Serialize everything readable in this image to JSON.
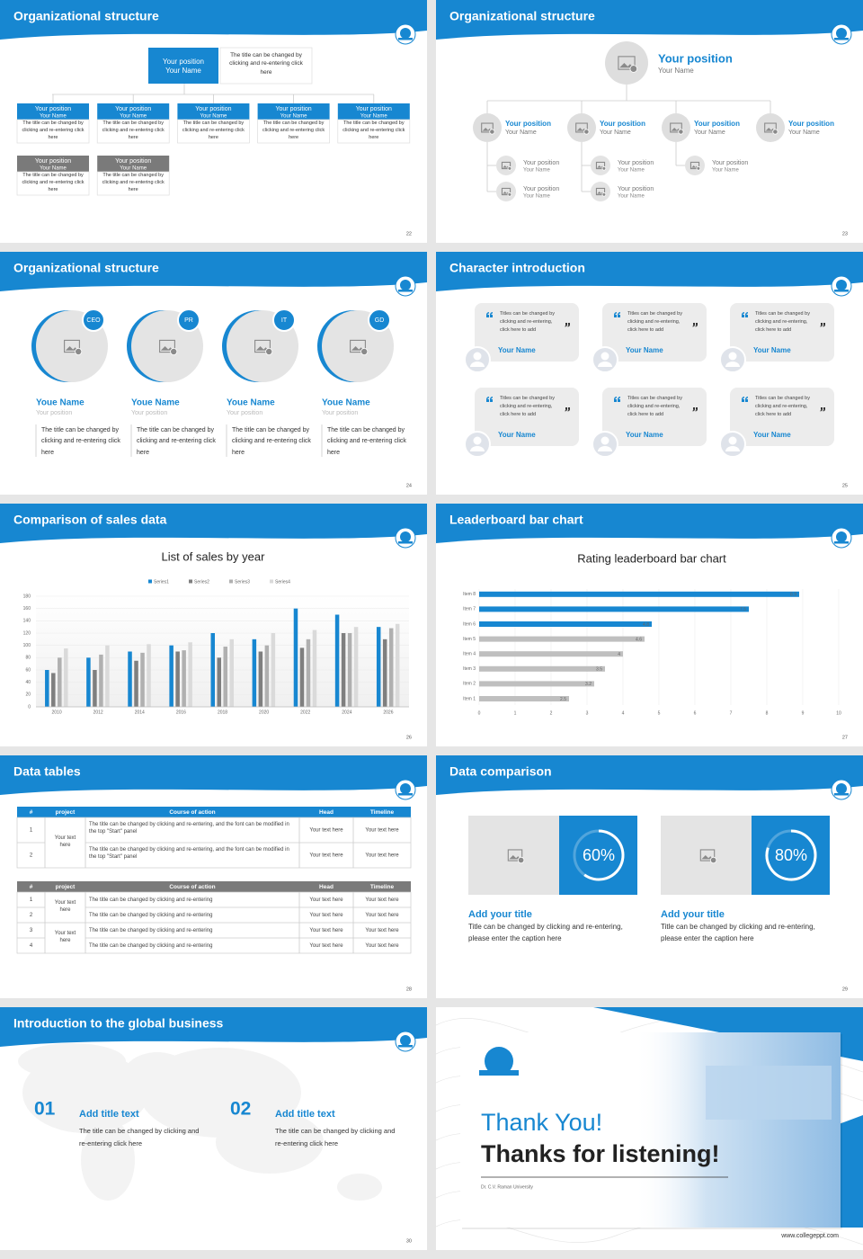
{
  "slides": [
    {
      "title": "Organizational structure",
      "page_number": 22,
      "top": {
        "position": "Your position",
        "name": "Your Name",
        "note": "The title can be changed by clicking and re-entering click here"
      },
      "row1": [
        {
          "position": "Your position",
          "name": "Your Name",
          "note": "The title can be changed by clicking and re-entering click here"
        },
        {
          "position": "Your position",
          "name": "Your Name",
          "note": "The title can be changed by clicking and re-entering click here"
        },
        {
          "position": "Your position",
          "name": "Your Name",
          "note": "The title can be changed by clicking and re-entering click here"
        },
        {
          "position": "Your position",
          "name": "Your Name",
          "note": "The title can be changed by clicking and re-entering click here"
        },
        {
          "position": "Your position",
          "name": "Your Name",
          "note": "The title can be changed by clicking and re-entering click here"
        }
      ],
      "row2": [
        {
          "position": "Your position",
          "name": "Your Name",
          "note": "The title can be changed by clicking and re-entering click here"
        },
        {
          "position": "Your position",
          "name": "Your Name",
          "note": "The title can be changed by clicking and re-entering click here"
        }
      ]
    },
    {
      "title": "Organizational structure",
      "page_number": 23,
      "top": {
        "position": "Your position",
        "name": "Your Name"
      },
      "level2": [
        {
          "position": "Your position",
          "name": "Your Name"
        },
        {
          "position": "Your position",
          "name": "Your Name"
        },
        {
          "position": "Your position",
          "name": "Your Name"
        },
        {
          "position": "Your position",
          "name": "Your Name"
        }
      ],
      "level3": [
        [
          {
            "position": "Your position",
            "name": "Your Name"
          },
          {
            "position": "Your position",
            "name": "Your Name"
          }
        ],
        [
          {
            "position": "Your position",
            "name": "Your Name"
          },
          {
            "position": "Your position",
            "name": "Your Name"
          }
        ],
        [
          {
            "position": "Your position",
            "name": "Your Name"
          }
        ]
      ]
    },
    {
      "title": "Organizational structure",
      "page_number": 24,
      "people": [
        {
          "role": "CEO",
          "name": "Youe Name",
          "position": "Your position",
          "note": "The title can be changed by clicking and re-entering click here"
        },
        {
          "role": "PR",
          "name": "Youe Name",
          "position": "Your position",
          "note": "The title can be changed by clicking and re-entering click here"
        },
        {
          "role": "IT",
          "name": "Youe Name",
          "position": "Your position",
          "note": "The title can be changed by clicking and re-entering click here"
        },
        {
          "role": "GD",
          "name": "Youe Name",
          "position": "Your position",
          "note": "The title can be changed by clicking and re-entering click here"
        }
      ]
    },
    {
      "title": "Character introduction",
      "page_number": 25,
      "cards": [
        {
          "quote": "Titles can be changed by clicking and re-entering, click here to add",
          "name": "Your Name"
        },
        {
          "quote": "Titles can be changed by clicking and re-entering, click here to add",
          "name": "Your Name"
        },
        {
          "quote": "Titles can be changed by clicking and re-entering, click here to add",
          "name": "Your Name"
        },
        {
          "quote": "Titles can be changed by clicking and re-entering, click here to add",
          "name": "Your Name"
        },
        {
          "quote": "Titles can be changed by clicking and re-entering, click here to add",
          "name": "Your Name"
        },
        {
          "quote": "Titles can be changed by clicking and re-entering, click here to add",
          "name": "Your Name"
        }
      ]
    },
    {
      "title": "Comparison of sales data",
      "page_number": 26,
      "chart": {
        "type": "bar",
        "title": "List of sales by year",
        "categories": [
          "2010",
          "2012",
          "2014",
          "2016",
          "2018",
          "2020",
          "2022",
          "2024",
          "2026"
        ],
        "series": [
          {
            "name": "Series1",
            "color": "#1787d1",
            "values": [
              60,
              80,
              90,
              100,
              120,
              110,
              160,
              150,
              130
            ]
          },
          {
            "name": "Series2",
            "color": "#7f7f7f",
            "values": [
              55,
              60,
              75,
              90,
              80,
              90,
              96,
              120,
              110
            ]
          },
          {
            "name": "Series3",
            "color": "#b0b0b0",
            "values": [
              80,
              85,
              88,
              92,
              98,
              100,
              110,
              120,
              128
            ]
          },
          {
            "name": "Series4",
            "color": "#dadada",
            "values": [
              95,
              100,
              102,
              105,
              110,
              120,
              125,
              130,
              135
            ]
          }
        ],
        "ylim": [
          0,
          180
        ],
        "yticks": [
          0,
          20,
          40,
          60,
          80,
          100,
          120,
          140,
          160,
          180
        ],
        "grid": true
      }
    },
    {
      "title": "Leaderboard bar chart",
      "page_number": 27,
      "chart": {
        "type": "hbar",
        "title": "Rating leaderboard bar chart",
        "categories": [
          "Item 1",
          "Item 2",
          "Item 3",
          "Item 4",
          "Item 5",
          "Item 6",
          "Item 7",
          "Item 8"
        ],
        "values": [
          2.5,
          3.2,
          3.5,
          4,
          4.6,
          4.8,
          7.5,
          8.9
        ],
        "colors": [
          "#bfbfbf",
          "#bfbfbf",
          "#bfbfbf",
          "#bfbfbf",
          "#bfbfbf",
          "#1787d1",
          "#1787d1",
          "#1787d1"
        ],
        "xlim": [
          0,
          10
        ],
        "xticks": [
          0,
          1,
          2,
          3,
          4,
          5,
          6,
          7,
          8,
          9,
          10
        ],
        "grid": true
      }
    },
    {
      "title": "Data tables",
      "page_number": 28,
      "table1": {
        "header": [
          "#",
          "project",
          "Course of action",
          "Head",
          "Timeline"
        ],
        "project": "Your text here",
        "rows": [
          [
            "1",
            "The title can be changed by clicking and re-entering, and the font can be modified in the top \"Start\" panel",
            "Your text here",
            "Your text here"
          ],
          [
            "2",
            "The title can be changed by clicking and re-entering, and the font can be modified in the top \"Start\" panel",
            "Your text here",
            "Your text here"
          ]
        ]
      },
      "table2": {
        "header": [
          "#",
          "project",
          "Course of action",
          "Head",
          "Timeline"
        ],
        "projects": [
          "Your text here",
          "Your text here"
        ],
        "rows": [
          [
            "1",
            "The title can be changed by clicking and re-entering",
            "Your text here",
            "Your text here"
          ],
          [
            "2",
            "The title can be changed by clicking and re-entering",
            "Your text here",
            "Your text here"
          ],
          [
            "3",
            "The title can be changed by clicking and re-entering",
            "Your text here",
            "Your text here"
          ],
          [
            "4",
            "The title can be changed by clicking and re-entering",
            "Your text here",
            "Your text here"
          ]
        ]
      }
    },
    {
      "title": "Data comparison",
      "page_number": 29,
      "items": [
        {
          "value": 60,
          "value_label": "60%",
          "title": "Add your title",
          "text": "Title can be changed by clicking and re-entering, please enter the caption here"
        },
        {
          "value": 80,
          "value_label": "80%",
          "title": "Add your title",
          "text": "Title can be changed by clicking and re-entering, please enter the caption here"
        }
      ]
    },
    {
      "title": "Introduction to the global business",
      "page_number": 30,
      "items": [
        {
          "number": "01",
          "title": "Add title text",
          "text": "The title can be changed by clicking and re-entering click here"
        },
        {
          "number": "02",
          "title": "Add title text",
          "text": "The title can be changed by clicking and re-entering click here"
        }
      ]
    },
    {
      "heading": "Thank You!",
      "subheading": "Thanks for listening!",
      "university": "Dr. C.V. Raman University",
      "website": "www.collegeppt.com"
    }
  ]
}
